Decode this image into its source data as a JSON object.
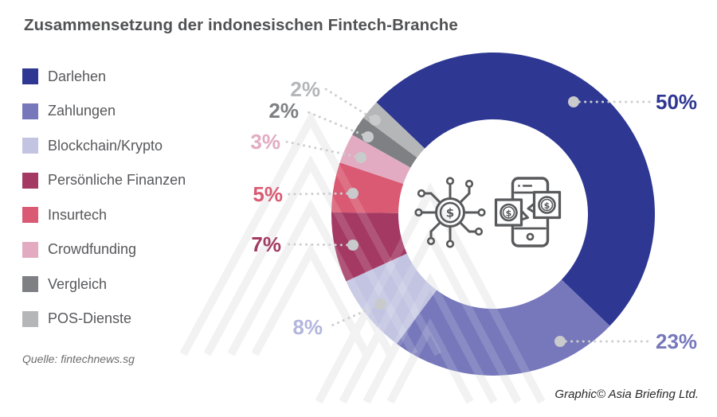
{
  "title": "Zusammensetzung der indonesischen Fintech-Branche",
  "source": "Quelle: fintechnews.sg",
  "credit": "Graphic© Asia Briefing Ltd.",
  "chart_data": {
    "type": "pie",
    "subtype": "donut",
    "title": "Zusammensetzung der indonesischen Fintech-Branche",
    "unit": "%",
    "legend_position": "left",
    "start_angle_deg": -46.2,
    "direction": "clockwise",
    "center_icons": [
      "fintech-network-icon",
      "mobile-payment-icon"
    ],
    "slices": [
      {
        "label": "Darlehen",
        "value": 50,
        "display": "50%",
        "color": "#2e3792"
      },
      {
        "label": "Zahlungen",
        "value": 23,
        "display": "23%",
        "color": "#7678bb"
      },
      {
        "label": "Blockchain/Krypto",
        "value": 8,
        "display": "8%",
        "color": "#c2c4e2",
        "label_color": "#b3b6dc"
      },
      {
        "label": "Persönliche Finanzen",
        "value": 7,
        "display": "7%",
        "color": "#a43a64"
      },
      {
        "label": "Insurtech",
        "value": 5,
        "display": "5%",
        "color": "#d95a72"
      },
      {
        "label": "Crowdfunding",
        "value": 3,
        "display": "3%",
        "color": "#e2abc2"
      },
      {
        "label": "Vergleich",
        "value": 2,
        "display": "2%",
        "color": "#7e8083"
      },
      {
        "label": "POS-Dienste",
        "value": 2,
        "display": "2%",
        "color": "#b4b6b8"
      }
    ],
    "colors": {
      "leader_line": "#cdced0",
      "leader_dot": "#c9cacb",
      "icon_stroke": "#58595b",
      "watermark": "#f0f0f1"
    }
  }
}
